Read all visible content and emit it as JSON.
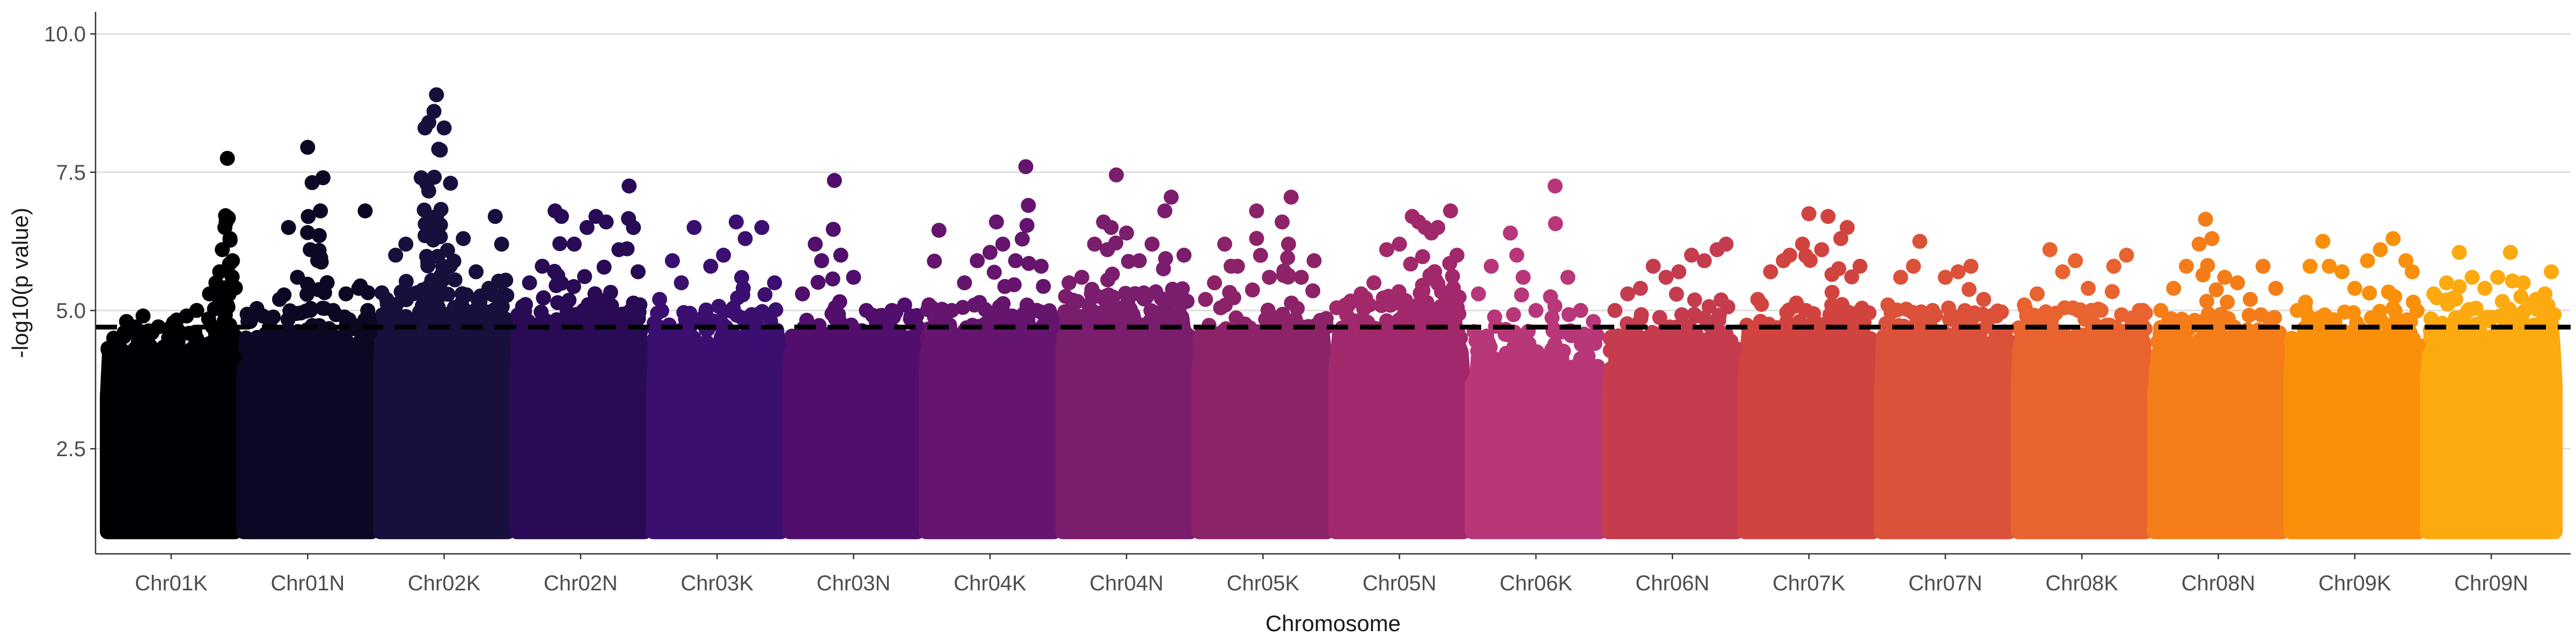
{
  "chart_data": {
    "type": "scatter",
    "subtype": "manhattan",
    "xlabel": "Chromosome",
    "ylabel": "-log10(p value)",
    "ylim": [
      0.6,
      10.4
    ],
    "yticks": [
      2.5,
      5.0,
      7.5,
      10.0
    ],
    "ytick_labels": [
      "2.5",
      "5.0",
      "7.5",
      "10.0"
    ],
    "grid": "horizontal major lines only",
    "legend": "none",
    "threshold": {
      "value": 4.7,
      "style": "dashed",
      "color": "#000000"
    },
    "baseline_value": 1.0,
    "categories": [
      "Chr01K",
      "Chr01N",
      "Chr02K",
      "Chr02N",
      "Chr03K",
      "Chr03N",
      "Chr04K",
      "Chr04N",
      "Chr05K",
      "Chr05N",
      "Chr06K",
      "Chr06N",
      "Chr07K",
      "Chr07N",
      "Chr08K",
      "Chr08N",
      "Chr09K",
      "Chr09N"
    ],
    "colors": [
      "#000004",
      "#0a0822",
      "#170f3c",
      "#280b54",
      "#3b0f70",
      "#510e6c",
      "#65156e",
      "#7a1d6d",
      "#8c2369",
      "#a1286a",
      "#b73779",
      "#c43c4e",
      "#d1433f",
      "#dc513a",
      "#e8632f",
      "#f47d1a",
      "#f98f0b",
      "#fcaa0f"
    ],
    "series": [
      {
        "name": "Chr01K",
        "bulk_top": 4.1,
        "peaks": [
          [
            0.05,
            4.5
          ],
          [
            0.15,
            4.8
          ],
          [
            0.28,
            4.9
          ],
          [
            0.35,
            4.6
          ],
          [
            0.5,
            4.7
          ],
          [
            0.62,
            4.9
          ],
          [
            0.7,
            5.0
          ],
          [
            0.8,
            5.3
          ],
          [
            0.85,
            5.5
          ],
          [
            0.88,
            5.7
          ],
          [
            0.9,
            6.1
          ],
          [
            0.92,
            6.5
          ],
          [
            0.93,
            6.6
          ],
          [
            0.94,
            7.75
          ],
          [
            0.96,
            6.3
          ],
          [
            0.98,
            5.9
          ]
        ]
      },
      {
        "name": "Chr01N",
        "bulk_top": 4.3,
        "peaks": [
          [
            0.05,
            4.8
          ],
          [
            0.15,
            4.9
          ],
          [
            0.28,
            5.2
          ],
          [
            0.35,
            6.5
          ],
          [
            0.42,
            5.6
          ],
          [
            0.5,
            7.95
          ],
          [
            0.52,
            6.1
          ],
          [
            0.6,
            6.8
          ],
          [
            0.62,
            7.4
          ],
          [
            0.7,
            5.0
          ],
          [
            0.8,
            5.3
          ],
          [
            0.9,
            5.4
          ],
          [
            0.95,
            6.8
          ],
          [
            0.97,
            5.0
          ]
        ]
      },
      {
        "name": "Chr02K",
        "bulk_top": 4.6,
        "peaks": [
          [
            0.05,
            5.2
          ],
          [
            0.12,
            6.0
          ],
          [
            0.2,
            6.2
          ],
          [
            0.32,
            7.4
          ],
          [
            0.35,
            8.3
          ],
          [
            0.38,
            8.4
          ],
          [
            0.42,
            8.6
          ],
          [
            0.44,
            8.9
          ],
          [
            0.47,
            7.9
          ],
          [
            0.5,
            8.3
          ],
          [
            0.55,
            7.3
          ],
          [
            0.65,
            6.3
          ],
          [
            0.75,
            5.7
          ],
          [
            0.85,
            5.4
          ],
          [
            0.9,
            6.7
          ],
          [
            0.95,
            6.2
          ]
        ]
      },
      {
        "name": "Chr02N",
        "bulk_top": 4.5,
        "peaks": [
          [
            0.1,
            5.5
          ],
          [
            0.2,
            5.8
          ],
          [
            0.3,
            6.8
          ],
          [
            0.35,
            6.7
          ],
          [
            0.45,
            6.2
          ],
          [
            0.55,
            6.5
          ],
          [
            0.62,
            6.7
          ],
          [
            0.7,
            6.6
          ],
          [
            0.8,
            6.1
          ],
          [
            0.88,
            7.25
          ],
          [
            0.95,
            5.7
          ]
        ]
      },
      {
        "name": "Chr03K",
        "bulk_top": 4.3,
        "peaks": [
          [
            0.05,
            5.2
          ],
          [
            0.15,
            5.9
          ],
          [
            0.22,
            5.5
          ],
          [
            0.32,
            6.5
          ],
          [
            0.45,
            5.8
          ],
          [
            0.55,
            6.0
          ],
          [
            0.65,
            6.6
          ],
          [
            0.72,
            6.3
          ],
          [
            0.85,
            6.5
          ],
          [
            0.95,
            5.5
          ]
        ]
      },
      {
        "name": "Chr03N",
        "bulk_top": 4.3,
        "peaks": [
          [
            0.1,
            5.3
          ],
          [
            0.2,
            6.2
          ],
          [
            0.25,
            5.9
          ],
          [
            0.35,
            7.35
          ],
          [
            0.4,
            6.0
          ],
          [
            0.5,
            5.6
          ],
          [
            0.6,
            5.0
          ],
          [
            0.7,
            4.9
          ],
          [
            0.8,
            5.0
          ],
          [
            0.9,
            5.1
          ],
          [
            0.95,
            4.9
          ]
        ]
      },
      {
        "name": "Chr04K",
        "bulk_top": 4.4,
        "peaks": [
          [
            0.1,
            6.45
          ],
          [
            0.2,
            5.0
          ],
          [
            0.3,
            5.5
          ],
          [
            0.4,
            5.9
          ],
          [
            0.5,
            6.05
          ],
          [
            0.55,
            6.6
          ],
          [
            0.6,
            6.2
          ],
          [
            0.7,
            5.9
          ],
          [
            0.78,
            7.6
          ],
          [
            0.8,
            6.9
          ],
          [
            0.9,
            5.8
          ]
        ]
      },
      {
        "name": "Chr04N",
        "bulk_top": 4.6,
        "peaks": [
          [
            0.05,
            5.5
          ],
          [
            0.15,
            5.6
          ],
          [
            0.25,
            6.2
          ],
          [
            0.32,
            6.6
          ],
          [
            0.35,
            6.1
          ],
          [
            0.38,
            6.5
          ],
          [
            0.42,
            7.45
          ],
          [
            0.5,
            6.4
          ],
          [
            0.6,
            5.9
          ],
          [
            0.7,
            6.2
          ],
          [
            0.8,
            6.8
          ],
          [
            0.85,
            7.05
          ],
          [
            0.95,
            6.0
          ]
        ]
      },
      {
        "name": "Chr05K",
        "bulk_top": 4.3,
        "peaks": [
          [
            0.05,
            5.2
          ],
          [
            0.12,
            5.5
          ],
          [
            0.2,
            6.2
          ],
          [
            0.25,
            5.8
          ],
          [
            0.3,
            5.8
          ],
          [
            0.45,
            6.8
          ],
          [
            0.55,
            5.6
          ],
          [
            0.65,
            6.6
          ],
          [
            0.7,
            6.2
          ],
          [
            0.72,
            7.05
          ],
          [
            0.8,
            5.6
          ],
          [
            0.9,
            5.9
          ]
        ]
      },
      {
        "name": "Chr05N",
        "bulk_top": 4.5,
        "peaks": [
          [
            0.1,
            5.1
          ],
          [
            0.2,
            5.3
          ],
          [
            0.3,
            5.5
          ],
          [
            0.4,
            6.1
          ],
          [
            0.5,
            6.2
          ],
          [
            0.6,
            6.7
          ],
          [
            0.65,
            6.6
          ],
          [
            0.7,
            6.5
          ],
          [
            0.75,
            6.4
          ],
          [
            0.8,
            6.5
          ],
          [
            0.9,
            6.8
          ],
          [
            0.95,
            6.0
          ]
        ]
      },
      {
        "name": "Chr06K",
        "bulk_top": 3.9,
        "peaks": [
          [
            0.05,
            5.3
          ],
          [
            0.15,
            5.8
          ],
          [
            0.3,
            6.4
          ],
          [
            0.35,
            6.0
          ],
          [
            0.4,
            5.6
          ],
          [
            0.5,
            5.0
          ],
          [
            0.65,
            7.25
          ],
          [
            0.75,
            5.6
          ],
          [
            0.85,
            5.0
          ],
          [
            0.95,
            4.8
          ]
        ]
      },
      {
        "name": "Chr06N",
        "bulk_top": 4.2,
        "peaks": [
          [
            0.05,
            5.0
          ],
          [
            0.15,
            5.3
          ],
          [
            0.25,
            5.4
          ],
          [
            0.35,
            5.8
          ],
          [
            0.45,
            5.6
          ],
          [
            0.55,
            5.7
          ],
          [
            0.65,
            6.0
          ],
          [
            0.75,
            5.9
          ],
          [
            0.85,
            6.1
          ],
          [
            0.92,
            6.2
          ]
        ]
      },
      {
        "name": "Chr07K",
        "bulk_top": 4.4,
        "peaks": [
          [
            0.1,
            5.2
          ],
          [
            0.2,
            5.7
          ],
          [
            0.3,
            5.9
          ],
          [
            0.35,
            6.0
          ],
          [
            0.45,
            6.2
          ],
          [
            0.5,
            6.75
          ],
          [
            0.6,
            6.1
          ],
          [
            0.65,
            6.7
          ],
          [
            0.75,
            6.3
          ],
          [
            0.8,
            6.5
          ],
          [
            0.9,
            5.8
          ]
        ]
      },
      {
        "name": "Chr07N",
        "bulk_top": 4.3,
        "peaks": [
          [
            0.05,
            5.1
          ],
          [
            0.15,
            5.6
          ],
          [
            0.25,
            5.8
          ],
          [
            0.3,
            6.25
          ],
          [
            0.4,
            5.0
          ],
          [
            0.5,
            5.6
          ],
          [
            0.6,
            5.7
          ],
          [
            0.7,
            5.8
          ],
          [
            0.8,
            5.2
          ],
          [
            0.9,
            4.9
          ]
        ]
      },
      {
        "name": "Chr08K",
        "bulk_top": 4.3,
        "peaks": [
          [
            0.05,
            5.1
          ],
          [
            0.15,
            5.3
          ],
          [
            0.25,
            6.1
          ],
          [
            0.35,
            5.7
          ],
          [
            0.45,
            5.9
          ],
          [
            0.55,
            5.4
          ],
          [
            0.65,
            5.0
          ],
          [
            0.75,
            5.8
          ],
          [
            0.85,
            6.0
          ],
          [
            0.95,
            5.0
          ]
        ]
      },
      {
        "name": "Chr08N",
        "bulk_top": 4.2,
        "peaks": [
          [
            0.05,
            5.0
          ],
          [
            0.15,
            5.4
          ],
          [
            0.25,
            5.8
          ],
          [
            0.35,
            6.2
          ],
          [
            0.4,
            6.65
          ],
          [
            0.45,
            6.3
          ],
          [
            0.55,
            5.6
          ],
          [
            0.65,
            5.5
          ],
          [
            0.75,
            5.2
          ],
          [
            0.85,
            5.8
          ],
          [
            0.95,
            5.4
          ]
        ]
      },
      {
        "name": "Chr09K",
        "bulk_top": 4.3,
        "peaks": [
          [
            0.05,
            5.0
          ],
          [
            0.15,
            5.8
          ],
          [
            0.25,
            6.25
          ],
          [
            0.3,
            5.8
          ],
          [
            0.4,
            5.7
          ],
          [
            0.5,
            5.4
          ],
          [
            0.6,
            5.9
          ],
          [
            0.7,
            6.1
          ],
          [
            0.8,
            6.3
          ],
          [
            0.9,
            5.9
          ],
          [
            0.95,
            5.7
          ]
        ]
      },
      {
        "name": "Chr09N",
        "bulk_top": 4.5,
        "peaks": [
          [
            0.05,
            5.3
          ],
          [
            0.15,
            5.5
          ],
          [
            0.25,
            6.05
          ],
          [
            0.35,
            5.6
          ],
          [
            0.45,
            5.4
          ],
          [
            0.55,
            5.6
          ],
          [
            0.65,
            6.05
          ],
          [
            0.75,
            5.5
          ],
          [
            0.85,
            5.2
          ],
          [
            0.92,
            5.3
          ],
          [
            0.97,
            5.7
          ]
        ]
      }
    ]
  }
}
